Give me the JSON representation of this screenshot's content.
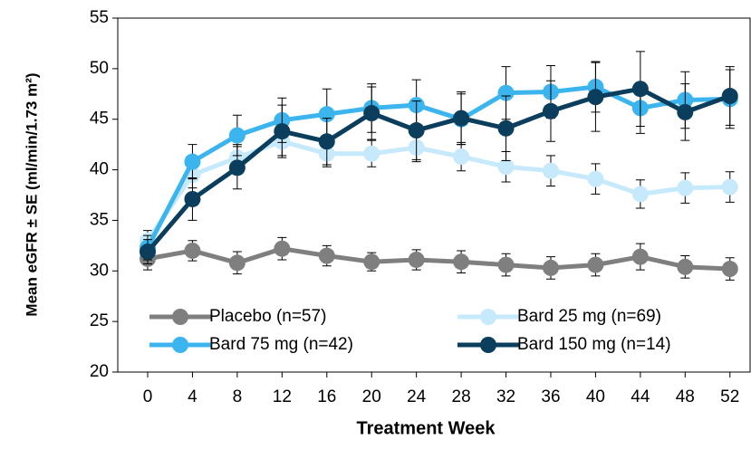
{
  "chart_data": {
    "type": "line",
    "x_label": "Treatment Week",
    "y_label": "Mean eGFR ± SE (ml/min/1.73 m²)",
    "x": [
      0,
      4,
      8,
      12,
      16,
      20,
      24,
      28,
      32,
      36,
      40,
      44,
      48,
      52
    ],
    "xlim": [
      -2.67,
      53.8
    ],
    "xticks": [
      0,
      4,
      8,
      12,
      16,
      20,
      24,
      28,
      32,
      36,
      40,
      44,
      48,
      52
    ],
    "ylim": [
      20,
      55
    ],
    "yticks": [
      20,
      25,
      30,
      35,
      40,
      45,
      50,
      55
    ],
    "legend": "bottom",
    "series": [
      {
        "name": "Placebo (n=57)",
        "color": "#7f7f7f",
        "values": [
          31.2,
          32.0,
          30.8,
          32.2,
          31.5,
          30.9,
          31.1,
          30.9,
          30.6,
          30.3,
          30.6,
          31.4,
          30.4,
          30.2
        ],
        "errors": [
          1.1,
          1.0,
          1.1,
          1.1,
          1.0,
          0.9,
          1.0,
          1.1,
          1.1,
          1.1,
          1.1,
          1.3,
          1.1,
          1.1
        ]
      },
      {
        "name": "Bard 25 mg (n=69)",
        "color": "#c6e9fb",
        "values": [
          33.0,
          39.5,
          41.2,
          42.8,
          41.6,
          41.6,
          42.2,
          41.3,
          40.3,
          39.9,
          39.1,
          37.6,
          38.2,
          38.3
        ],
        "errors": [
          1.0,
          1.3,
          1.3,
          1.4,
          1.3,
          1.3,
          1.4,
          1.4,
          1.5,
          1.5,
          1.5,
          1.4,
          1.5,
          1.5
        ]
      },
      {
        "name": "Bard 75 mg (n=42)",
        "color": "#3cb4ed",
        "values": [
          32.3,
          40.8,
          43.4,
          44.9,
          45.5,
          46.1,
          46.4,
          45.0,
          47.6,
          47.7,
          48.2,
          46.1,
          46.9,
          47.0
        ],
        "errors": [
          1.2,
          1.7,
          2.0,
          2.2,
          2.5,
          2.4,
          2.5,
          2.5,
          2.6,
          2.6,
          2.5,
          2.5,
          2.8,
          2.9
        ]
      },
      {
        "name": "Bard 150 mg (n=14)",
        "color": "#0b3d5c",
        "values": [
          31.9,
          37.1,
          40.2,
          43.8,
          42.8,
          45.6,
          43.9,
          45.1,
          44.1,
          45.8,
          47.2,
          48.0,
          45.7,
          47.3
        ],
        "errors": [
          1.2,
          2.1,
          2.1,
          2.6,
          2.3,
          2.6,
          2.9,
          2.6,
          3.2,
          3.0,
          3.4,
          3.7,
          2.8,
          2.9
        ]
      }
    ]
  }
}
